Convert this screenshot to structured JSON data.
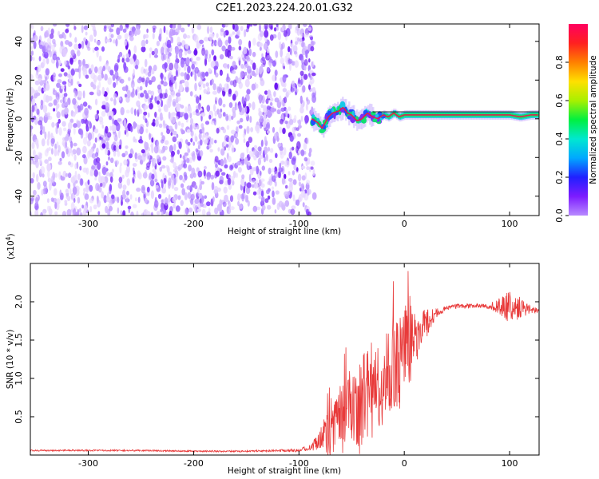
{
  "figure_title": "C2E1.2023.224.20.01.G32",
  "colors": {
    "snr_line": "#e83a3a",
    "spectrum_noise": "#6a14f0",
    "ridge_core": "#e0204c",
    "ridge_mid": "#10e070",
    "ridge_edge": "#18c8e8",
    "colorbar_stops": [
      "#b88aff",
      "#7d1cff",
      "#2020ff",
      "#00a8ff",
      "#00e8d0",
      "#00f040",
      "#a8f000",
      "#ffe000",
      "#ff8000",
      "#ff2020",
      "#ff0060"
    ]
  },
  "chart_data": [
    {
      "type": "heatmap",
      "xlabel": "Height of straight line (km)",
      "ylabel": "Frequency (Hz)",
      "xlim": [
        -355,
        128
      ],
      "ylim": [
        -50,
        49
      ],
      "xticks": [
        -300,
        -200,
        -100,
        0,
        100
      ],
      "yticks": [
        -40,
        -20,
        0,
        20,
        40
      ],
      "noise_region_x": [
        -355,
        -85
      ],
      "ridge": {
        "x": [
          -88,
          -82,
          -78,
          -72,
          -68,
          -62,
          -58,
          -54,
          -50,
          -45,
          -40,
          -35,
          -30,
          -25,
          -20,
          -15,
          -10,
          -5,
          0,
          10,
          20,
          40,
          60,
          80,
          100,
          110,
          120,
          128
        ],
        "y": [
          0,
          -2,
          -5,
          1,
          3,
          4,
          6,
          3,
          2,
          -1,
          0,
          3,
          1,
          0,
          2,
          1,
          3,
          1,
          2,
          2,
          2,
          2,
          2,
          2,
          2,
          1,
          2,
          2
        ]
      },
      "colorbar": {
        "label": "Normalized spectral amplitude",
        "range": [
          0,
          1
        ],
        "ticks": [
          "0.0",
          "0.2",
          "0.4",
          "0.6",
          "0.8"
        ]
      }
    },
    {
      "type": "line",
      "xlabel": "Height of straight line (km)",
      "ylabel": "SNR (10 * v/v)",
      "scale_label": "(x10",
      "scale_exponent": "4",
      "scale_close": ")",
      "xlim": [
        -355,
        128
      ],
      "ylim": [
        0.0,
        2.5
      ],
      "xticks": [
        -300,
        -200,
        -100,
        0,
        100
      ],
      "yticks": [
        "0.5",
        "1.0",
        "1.5",
        "2.0"
      ],
      "series": [
        {
          "x": [
            -355,
            -300,
            -250,
            -200,
            -150,
            -100,
            -90,
            -80,
            -70,
            -60,
            -50,
            -40,
            -30,
            -20,
            -10,
            0,
            10,
            20,
            30,
            40,
            50,
            60,
            70,
            80,
            90,
            100,
            110,
            120,
            128
          ],
          "y": [
            0.06,
            0.06,
            0.06,
            0.05,
            0.05,
            0.06,
            0.1,
            0.2,
            0.35,
            0.5,
            0.65,
            0.75,
            0.85,
            1.0,
            1.2,
            1.4,
            1.55,
            1.7,
            1.85,
            1.92,
            1.94,
            1.94,
            1.95,
            1.94,
            1.93,
            1.93,
            1.92,
            1.9,
            1.88
          ],
          "spread": [
            0.01,
            0.01,
            0.01,
            0.01,
            0.01,
            0.02,
            0.04,
            0.15,
            0.35,
            0.45,
            0.55,
            0.7,
            0.6,
            0.6,
            0.6,
            0.7,
            0.35,
            0.2,
            0.06,
            0.03,
            0.03,
            0.03,
            0.03,
            0.03,
            0.12,
            0.22,
            0.15,
            0.05,
            0.03
          ]
        }
      ]
    }
  ]
}
